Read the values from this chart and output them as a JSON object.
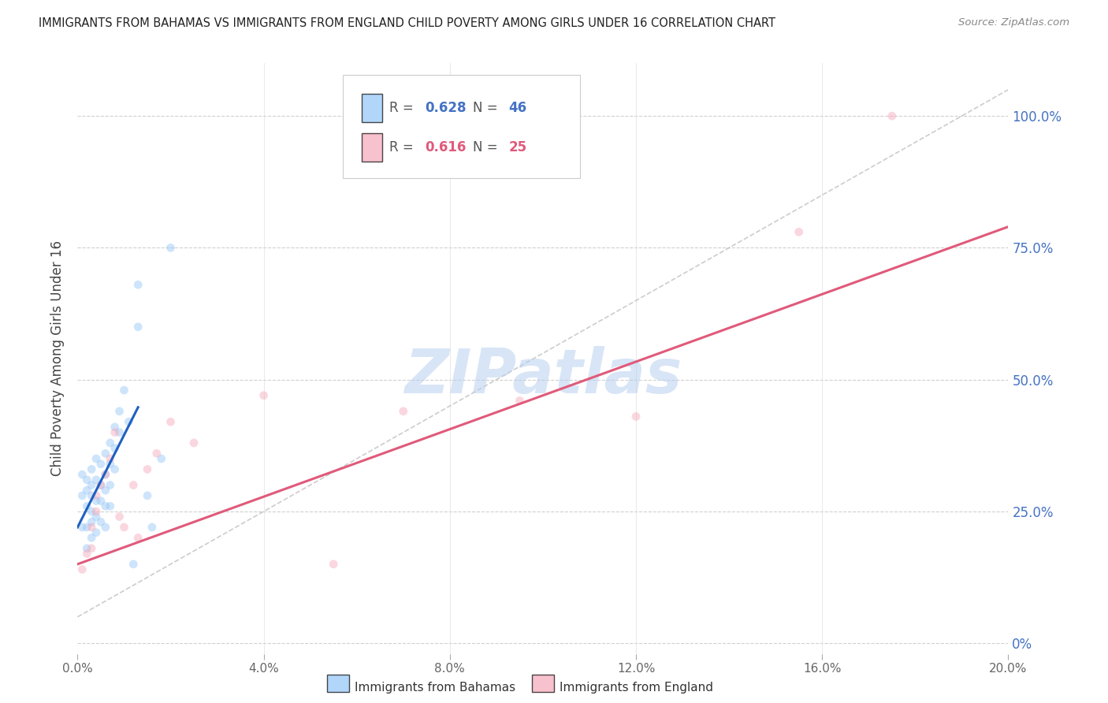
{
  "title": "IMMIGRANTS FROM BAHAMAS VS IMMIGRANTS FROM ENGLAND CHILD POVERTY AMONG GIRLS UNDER 16 CORRELATION CHART",
  "source": "Source: ZipAtlas.com",
  "ylabel": "Child Poverty Among Girls Under 16",
  "r_bahamas": 0.628,
  "n_bahamas": 46,
  "r_england": 0.616,
  "n_england": 25,
  "color_bahamas": "#92c5f7",
  "color_england": "#f4a7b9",
  "color_blue_text": "#4472c4",
  "color_pink_text": "#e05a7a",
  "color_trendline_blue": "#2060c0",
  "color_trendline_pink": "#e05a7a",
  "color_diagonal": "#c0c0c0",
  "color_grid": "#d0d0d0",
  "color_title": "#222222",
  "color_right_axis": "#4472c4",
  "xlim": [
    0.0,
    0.2
  ],
  "ylim": [
    -0.02,
    1.1
  ],
  "xtick_vals": [
    0.0,
    0.04,
    0.08,
    0.12,
    0.16,
    0.2
  ],
  "xtick_labels": [
    "0.0%",
    "4.0%",
    "8.0%",
    "12.0%",
    "16.0%",
    "20.0%"
  ],
  "ytick_vals": [
    0.0,
    0.25,
    0.5,
    0.75,
    1.0
  ],
  "ytick_labels": [
    "0%",
    "25.0%",
    "50.0%",
    "75.0%",
    "100.0%"
  ],
  "bahamas_x": [
    0.001,
    0.001,
    0.001,
    0.002,
    0.002,
    0.002,
    0.002,
    0.002,
    0.003,
    0.003,
    0.003,
    0.003,
    0.003,
    0.003,
    0.004,
    0.004,
    0.004,
    0.004,
    0.004,
    0.005,
    0.005,
    0.005,
    0.005,
    0.006,
    0.006,
    0.006,
    0.006,
    0.006,
    0.007,
    0.007,
    0.007,
    0.007,
    0.008,
    0.008,
    0.008,
    0.009,
    0.009,
    0.01,
    0.011,
    0.012,
    0.013,
    0.013,
    0.015,
    0.016,
    0.018,
    0.02
  ],
  "bahamas_y": [
    0.32,
    0.28,
    0.22,
    0.31,
    0.29,
    0.26,
    0.22,
    0.18,
    0.33,
    0.3,
    0.28,
    0.25,
    0.23,
    0.2,
    0.35,
    0.31,
    0.27,
    0.24,
    0.21,
    0.34,
    0.3,
    0.27,
    0.23,
    0.36,
    0.32,
    0.29,
    0.26,
    0.22,
    0.38,
    0.34,
    0.3,
    0.26,
    0.41,
    0.37,
    0.33,
    0.44,
    0.4,
    0.48,
    0.42,
    0.15,
    0.6,
    0.68,
    0.28,
    0.22,
    0.35,
    0.75
  ],
  "england_x": [
    0.001,
    0.002,
    0.003,
    0.003,
    0.004,
    0.004,
    0.005,
    0.006,
    0.007,
    0.008,
    0.009,
    0.01,
    0.012,
    0.013,
    0.015,
    0.017,
    0.02,
    0.025,
    0.04,
    0.055,
    0.07,
    0.095,
    0.12,
    0.155,
    0.175
  ],
  "england_y": [
    0.14,
    0.17,
    0.22,
    0.18,
    0.25,
    0.28,
    0.3,
    0.32,
    0.35,
    0.4,
    0.24,
    0.22,
    0.3,
    0.2,
    0.33,
    0.36,
    0.42,
    0.38,
    0.47,
    0.15,
    0.44,
    0.46,
    0.43,
    0.78,
    1.0
  ],
  "watermark": "ZIPatlas",
  "marker_size": 60,
  "marker_alpha": 0.45,
  "trendline_blue_intercept": 0.22,
  "trendline_blue_slope": 17.5,
  "trendline_pink_intercept": 0.15,
  "trendline_pink_slope": 3.2
}
